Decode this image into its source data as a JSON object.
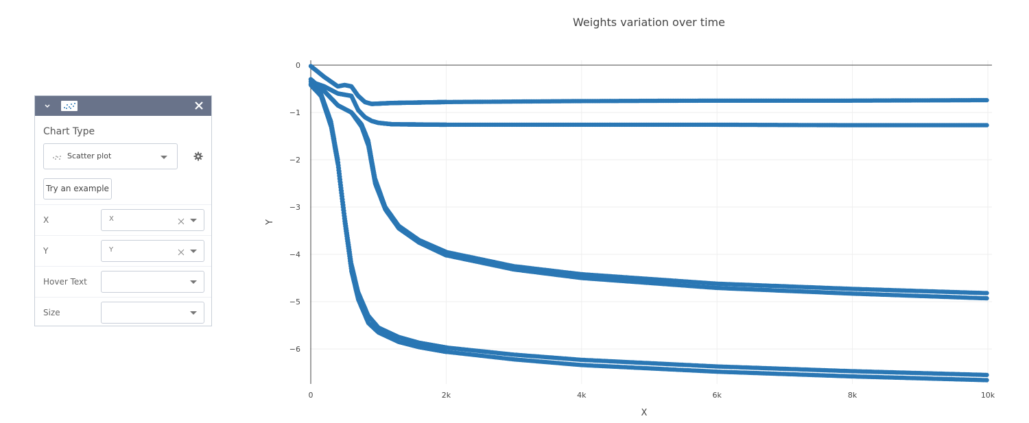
{
  "panel": {
    "chart_type_label": "Chart Type",
    "chart_type_value": "Scatter plot",
    "try_example_label": "Try an example",
    "fields": [
      {
        "label": "X",
        "value": "X"
      },
      {
        "label": "Y",
        "value": "Y"
      },
      {
        "label": "Hover Text",
        "value": ""
      },
      {
        "label": "Size",
        "value": ""
      }
    ],
    "header_color": "#69738a"
  },
  "chart_data": {
    "type": "scatter",
    "title": "Weights variation over time",
    "xlabel": "X",
    "ylabel": "Y",
    "xlim": [
      -100,
      10000
    ],
    "ylim": [
      -6.7,
      0.1
    ],
    "x_ticks": [
      0,
      2000,
      4000,
      6000,
      8000,
      10000
    ],
    "x_tick_labels": [
      "0",
      "2k",
      "4k",
      "6k",
      "8k",
      "10k"
    ],
    "y_ticks": [
      0,
      -1,
      -2,
      -3,
      -4,
      -5,
      -6
    ],
    "y_tick_labels": [
      "0",
      "−1",
      "−2",
      "−3",
      "−4",
      "−5",
      "−6"
    ],
    "grid": true,
    "marker_color": "#2a77b4",
    "series": [
      {
        "x": [
          0,
          200,
          400,
          500,
          600,
          700,
          800,
          900,
          1200,
          2000,
          4000,
          6000,
          8000,
          10000
        ],
        "y": [
          -0.02,
          -0.25,
          -0.45,
          -0.42,
          -0.45,
          -0.65,
          -0.78,
          -0.82,
          -0.8,
          -0.78,
          -0.76,
          -0.75,
          -0.75,
          -0.74
        ]
      },
      {
        "x": [
          0,
          200,
          400,
          600,
          700,
          800,
          900,
          1000,
          1200,
          2000,
          4000,
          6000,
          8000,
          10000
        ],
        "y": [
          -0.35,
          -0.45,
          -0.6,
          -0.65,
          -0.95,
          -1.1,
          -1.18,
          -1.22,
          -1.25,
          -1.26,
          -1.26,
          -1.26,
          -1.27,
          -1.27
        ]
      },
      {
        "x": [
          0,
          200,
          400,
          600,
          750,
          850,
          950,
          1100,
          1300,
          1600,
          2000,
          3000,
          4000,
          6000,
          8000,
          10000
        ],
        "y": [
          -0.3,
          -0.55,
          -0.85,
          -1.0,
          -1.25,
          -1.6,
          -2.4,
          -3.0,
          -3.4,
          -3.7,
          -3.95,
          -4.25,
          -4.42,
          -4.62,
          -4.73,
          -4.82
        ]
      },
      {
        "x": [
          0,
          200,
          400,
          600,
          750,
          850,
          950,
          1100,
          1300,
          1600,
          2000,
          3000,
          4000,
          6000,
          8000,
          10000
        ],
        "y": [
          -0.3,
          -0.55,
          -0.85,
          -1.0,
          -1.3,
          -1.7,
          -2.5,
          -3.05,
          -3.45,
          -3.75,
          -4.02,
          -4.32,
          -4.5,
          -4.71,
          -4.83,
          -4.93
        ]
      },
      {
        "x": [
          0,
          150,
          300,
          400,
          500,
          600,
          700,
          850,
          1000,
          1300,
          1600,
          2000,
          3000,
          4000,
          6000,
          8000,
          10000
        ],
        "y": [
          -0.4,
          -0.6,
          -1.2,
          -2.0,
          -3.2,
          -4.2,
          -4.8,
          -5.3,
          -5.55,
          -5.75,
          -5.87,
          -5.97,
          -6.12,
          -6.23,
          -6.37,
          -6.47,
          -6.55
        ]
      },
      {
        "x": [
          0,
          150,
          300,
          400,
          500,
          600,
          700,
          850,
          1000,
          1300,
          1600,
          2000,
          3000,
          4000,
          6000,
          8000,
          10000
        ],
        "y": [
          -0.42,
          -0.65,
          -1.3,
          -2.1,
          -3.3,
          -4.35,
          -4.95,
          -5.45,
          -5.65,
          -5.85,
          -5.96,
          -6.06,
          -6.22,
          -6.34,
          -6.48,
          -6.58,
          -6.66
        ]
      }
    ]
  }
}
